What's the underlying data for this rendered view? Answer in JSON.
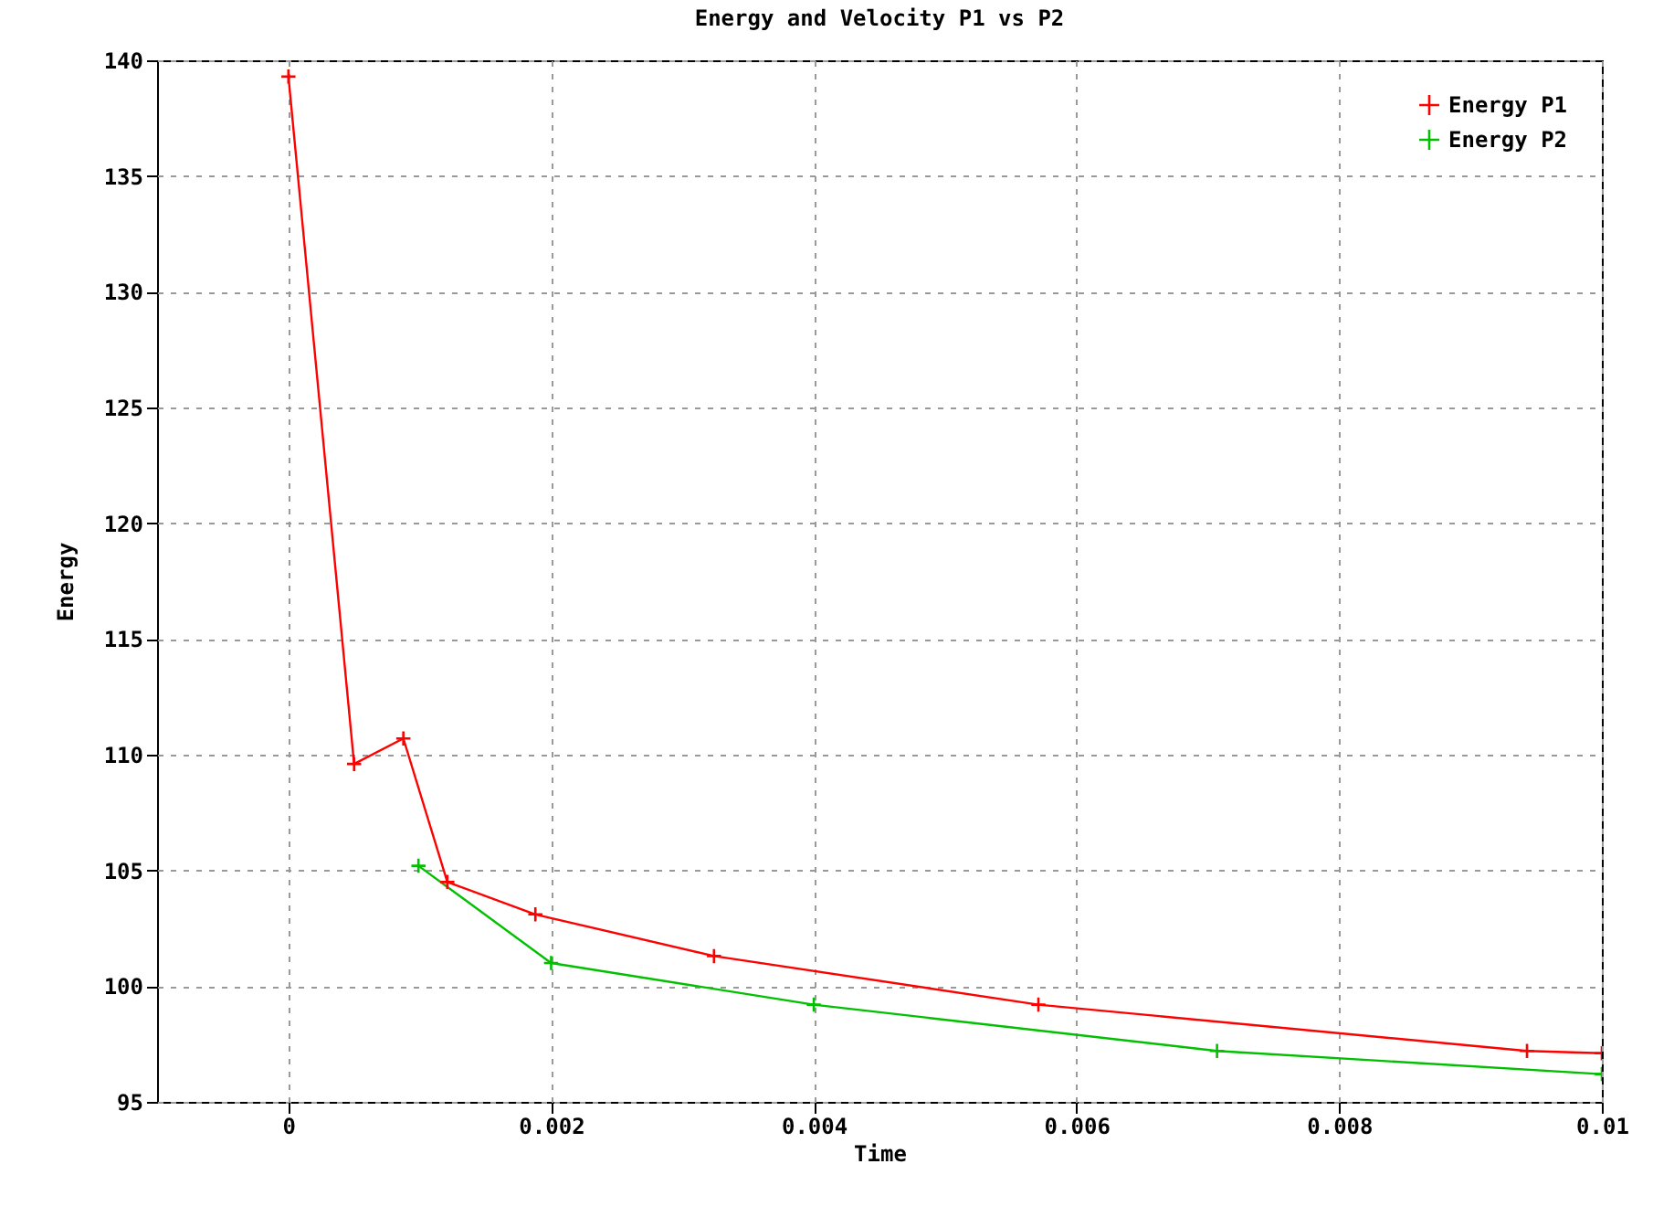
{
  "chart_data": {
    "type": "line",
    "title": "Energy and Velocity P1 vs P2",
    "xlabel": "Time",
    "ylabel": "Energy",
    "series": [
      {
        "name": "Energy P1",
        "color": "#ff0000",
        "x": [
          0,
          0.0005,
          0.000875,
          0.00121,
          0.00188,
          0.00324,
          0.00571,
          0.00943,
          0.01
        ],
        "values": [
          139.3,
          109.6,
          110.7,
          104.5,
          103.1,
          101.3,
          99.2,
          97.2,
          97.1
        ]
      },
      {
        "name": "Energy P2",
        "color": "#00c000",
        "x": [
          0.00099,
          0.002,
          0.004,
          0.00707,
          0.01
        ],
        "values": [
          105.2,
          101.0,
          99.2,
          97.2,
          96.2
        ]
      }
    ],
    "xlim": [
      -0.001,
      0.01
    ],
    "xticks": [
      0,
      0.002,
      0.004,
      0.006,
      0.008,
      0.01
    ],
    "ylim": [
      95,
      140
    ],
    "yticks": [
      95,
      100,
      105,
      110,
      115,
      120,
      125,
      130,
      135,
      140
    ],
    "grid": true,
    "legend": "top right",
    "marker": "cross",
    "line_style": "solid"
  }
}
